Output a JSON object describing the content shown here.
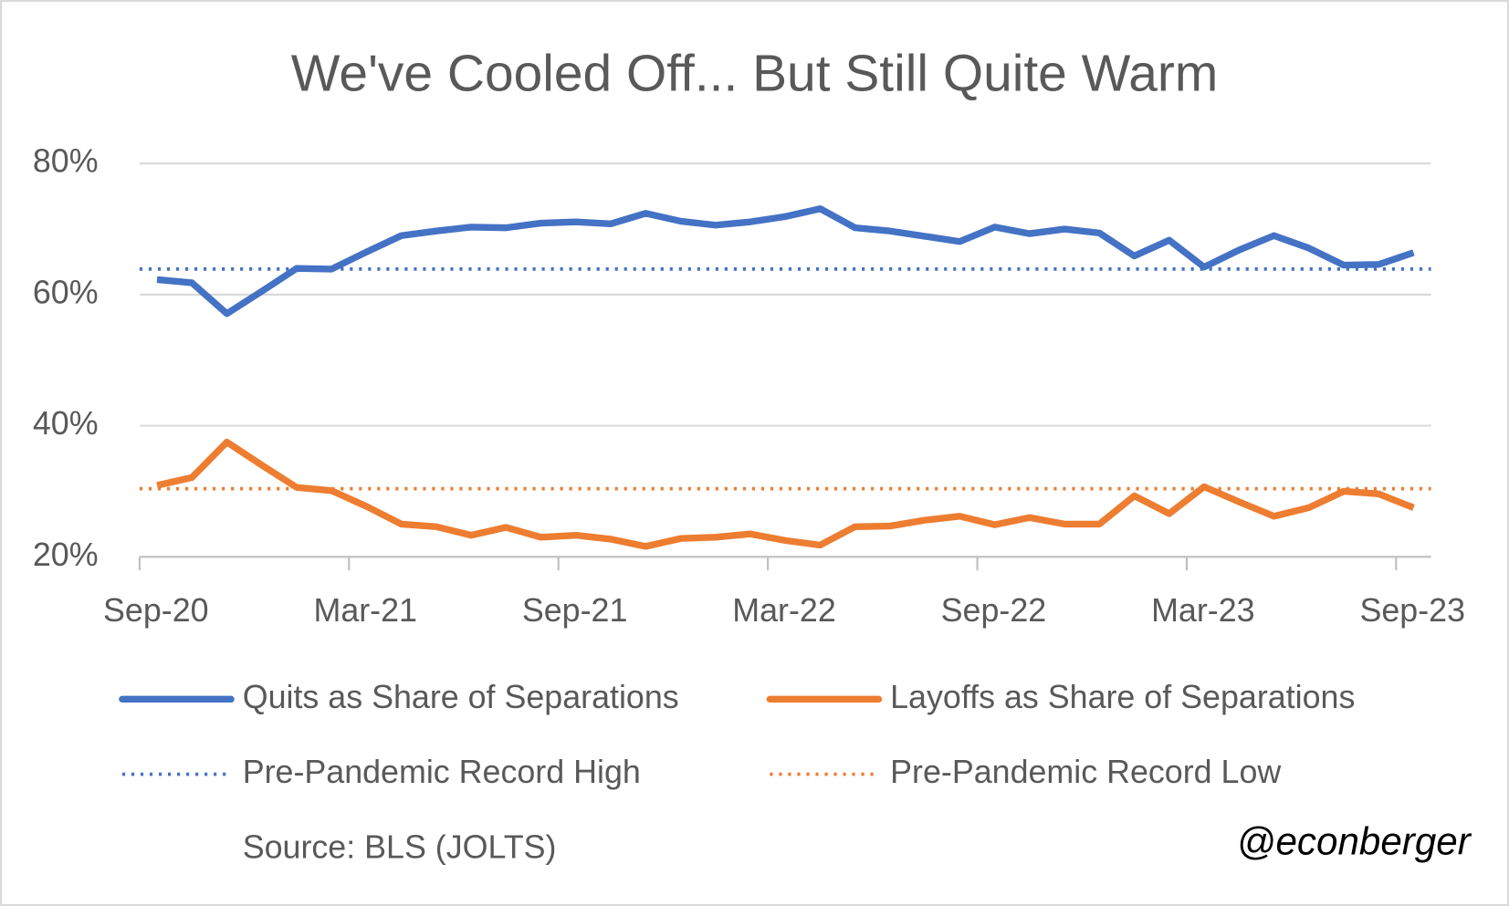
{
  "chart_data": {
    "type": "line",
    "title": "We've Cooled Off... But Still Quite Warm",
    "categories": [
      "Sep-20",
      null,
      null,
      null,
      null,
      null,
      "Mar-21",
      null,
      null,
      null,
      null,
      null,
      "Sep-21",
      null,
      null,
      null,
      null,
      null,
      "Mar-22",
      null,
      null,
      null,
      null,
      null,
      "Sep-22",
      null,
      null,
      null,
      null,
      null,
      "Mar-23",
      null,
      null,
      null,
      null,
      null,
      "Sep-23"
    ],
    "series": [
      {
        "name": "Quits as Share of Separations",
        "color": "#4472c4",
        "values": [
          62.3,
          61.8,
          57.1,
          60.5,
          64.0,
          63.9,
          66.5,
          69.0,
          69.7,
          70.3,
          70.2,
          70.9,
          71.1,
          70.8,
          72.4,
          71.2,
          70.6,
          71.1,
          71.9,
          73.1,
          70.2,
          69.7,
          68.9,
          68.1,
          70.3,
          69.3,
          70.0,
          69.4,
          65.9,
          68.3,
          64.2,
          66.8,
          69.0,
          67.1,
          64.5,
          64.6,
          66.4
        ]
      },
      {
        "name": "Layoffs as Share of Separations",
        "color": "#ed7d31",
        "values": [
          30.9,
          32.1,
          37.5,
          34.0,
          30.6,
          30.1,
          27.7,
          25.0,
          24.6,
          23.3,
          24.5,
          23.0,
          23.3,
          22.7,
          21.6,
          22.8,
          23.0,
          23.5,
          22.5,
          21.8,
          24.6,
          24.7,
          25.6,
          26.2,
          24.9,
          26.0,
          25.0,
          25.0,
          29.3,
          26.6,
          30.7,
          28.4,
          26.2,
          27.5,
          30.0,
          29.6,
          27.5
        ]
      }
    ],
    "reference_lines": [
      {
        "name": "Pre-Pandemic Record High",
        "color": "#4472c4",
        "value": 63.9
      },
      {
        "name": "Pre-Pandemic Record Low",
        "color": "#ed7d31",
        "value": 30.4
      }
    ],
    "ylim": [
      20,
      80
    ],
    "yticks": [
      {
        "value": 20,
        "label": "20%"
      },
      {
        "value": 40,
        "label": "40%"
      },
      {
        "value": 60,
        "label": "60%"
      },
      {
        "value": 80,
        "label": "80%"
      }
    ],
    "grid": true,
    "source": "Source: BLS (JOLTS)",
    "handle": "@econberger"
  }
}
